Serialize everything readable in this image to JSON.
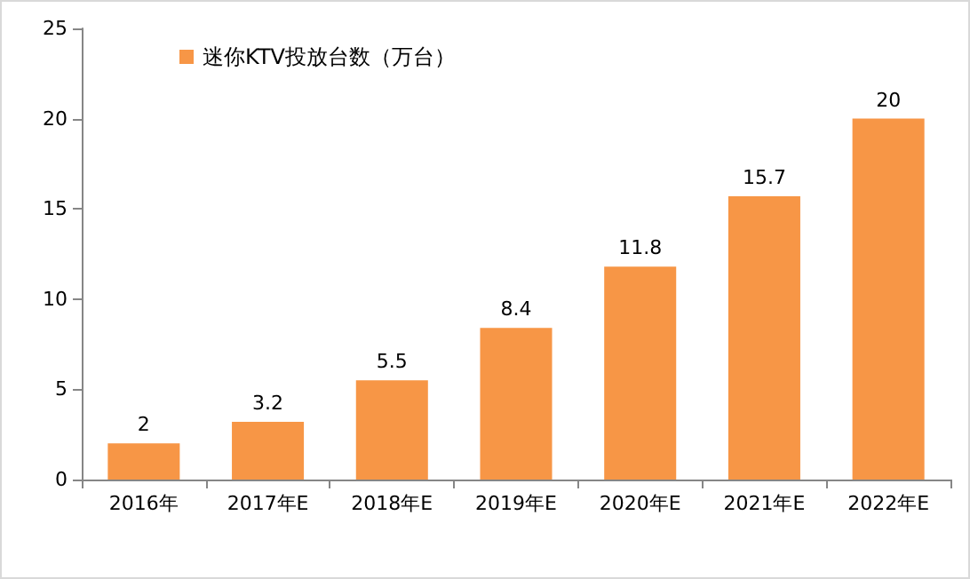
{
  "chart_data": {
    "type": "bar",
    "categories": [
      "2016年",
      "2017年E",
      "2018年E",
      "2019年E",
      "2020年E",
      "2021年E",
      "2022年E"
    ],
    "series": [
      {
        "name": "迷你KTV投放台数（万台）",
        "color": "#f79646",
        "values": [
          2,
          3.2,
          5.5,
          8.4,
          11.8,
          15.7,
          20
        ]
      }
    ],
    "ylim": [
      0,
      25
    ],
    "yticks": [
      0,
      5,
      10,
      15,
      20,
      25
    ],
    "data_labels": true,
    "grid": false,
    "legend": "top left"
  }
}
